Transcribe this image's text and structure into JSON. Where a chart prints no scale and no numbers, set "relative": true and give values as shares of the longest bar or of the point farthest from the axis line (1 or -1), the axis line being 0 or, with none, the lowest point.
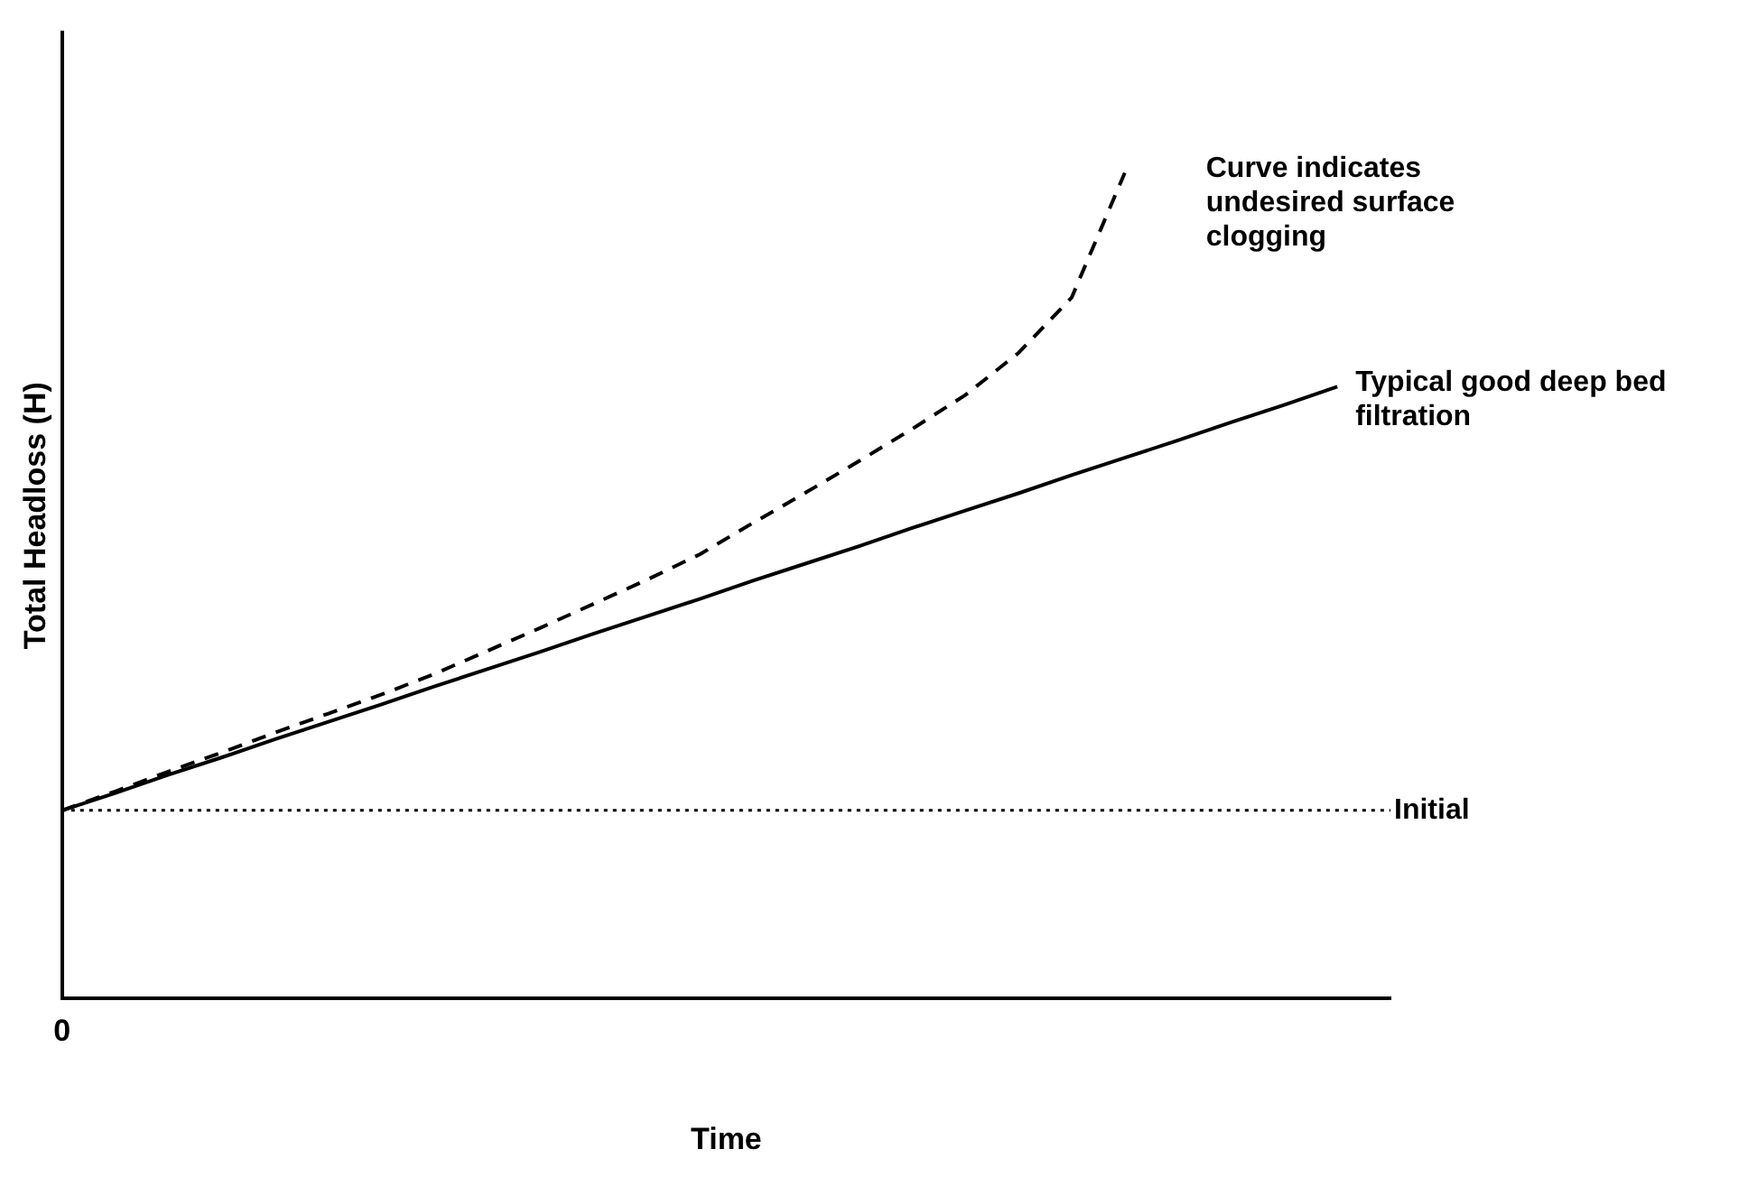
{
  "chart_data": {
    "type": "line",
    "xlabel": "Time",
    "ylabel": "Total Headloss (H)",
    "relative": true,
    "grid": false,
    "legend": false,
    "marker": "none",
    "annotations": [
      "0"
    ],
    "categories": [
      null,
      null,
      null,
      null,
      null,
      null,
      null,
      null,
      null,
      null,
      null,
      null,
      null,
      null,
      null,
      null,
      null,
      null,
      null,
      null,
      null,
      null,
      null,
      null,
      null,
      null
    ],
    "series": [
      {
        "name": "Typical good deep bed filtration",
        "color": "#000000",
        "line_style": "solid",
        "values": [
          0.228,
          0.249,
          0.271,
          0.292,
          0.314,
          0.335,
          0.356,
          0.378,
          0.399,
          0.42,
          0.442,
          0.463,
          0.484,
          0.506,
          0.527,
          0.548,
          0.57,
          0.591,
          0.612,
          0.634,
          0.655,
          0.676,
          0.698,
          0.719,
          0.741,
          null
        ]
      },
      {
        "name": "Curve indicates undesired surface clogging",
        "color": "#000000",
        "line_style": "dashed",
        "values": [
          0.228,
          0.251,
          0.275,
          0.298,
          0.322,
          0.345,
          0.368,
          0.393,
          0.421,
          0.449,
          0.478,
          0.507,
          0.538,
          0.576,
          0.613,
          0.651,
          0.69,
          0.731,
          0.782,
          0.849,
          1,
          null,
          null,
          null,
          null,
          null
        ]
      }
    ],
    "ref_lines": [
      {
        "axis": "y",
        "value": 0.228,
        "label": "Initial",
        "color": "#000000",
        "line_style": "dotted"
      }
    ]
  }
}
